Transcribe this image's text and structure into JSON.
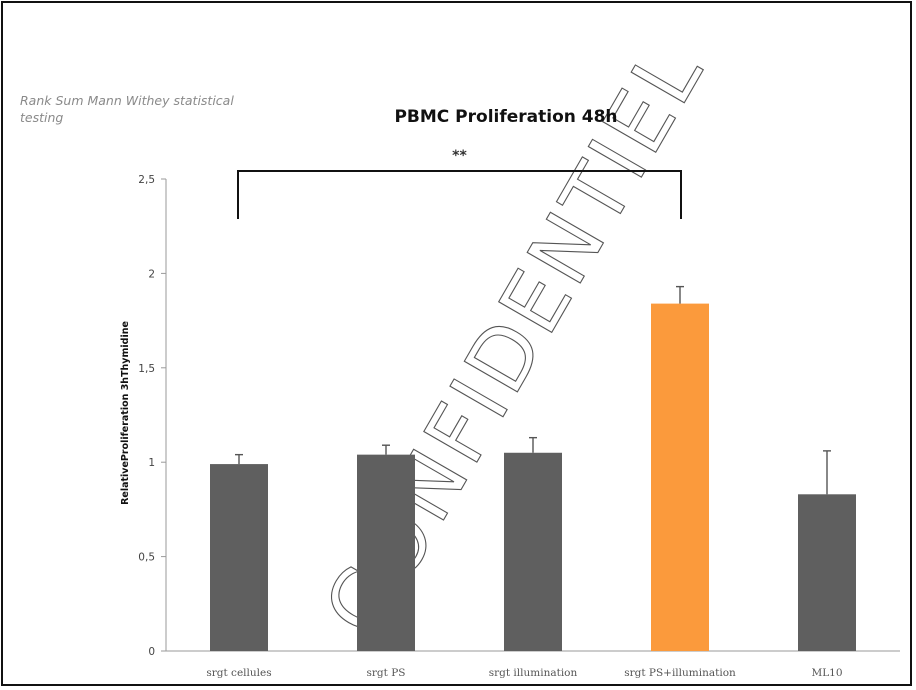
{
  "note": "Rank Sum Mann Withey statistical testing",
  "watermark": "CONFIDENTIEL",
  "significance": {
    "label": "**",
    "from_category": "srgt cellules",
    "to_category": "srgt PS+illumination"
  },
  "colors": {
    "bar_default": "#5f5f5f",
    "bar_highlight": "#fb9a3c",
    "error_bar": "#555555",
    "axis": "#9a9a9a",
    "bracket": "#111111"
  },
  "chart_data": {
    "type": "bar",
    "title": "PBMC Proliferation 48h",
    "xlabel": "",
    "ylabel": "RelativeProliferation 3hThymidine",
    "ylim": [
      0,
      2.5
    ],
    "yticks": [
      {
        "value": 0,
        "label": "0"
      },
      {
        "value": 0.5,
        "label": "0,5"
      },
      {
        "value": 1,
        "label": "1"
      },
      {
        "value": 1.5,
        "label": "1,5"
      },
      {
        "value": 2,
        "label": "2"
      },
      {
        "value": 2.5,
        "label": "2,5"
      }
    ],
    "grid": false,
    "legend": "none",
    "categories": [
      "srgt cellules",
      "srgt PS",
      "srgt illumination",
      "srgt PS+illumination",
      "ML10"
    ],
    "values": [
      0.99,
      1.04,
      1.05,
      1.84,
      0.83
    ],
    "error": [
      0.05,
      0.05,
      0.08,
      0.09,
      0.23
    ],
    "highlight": [
      false,
      false,
      false,
      true,
      false
    ]
  }
}
